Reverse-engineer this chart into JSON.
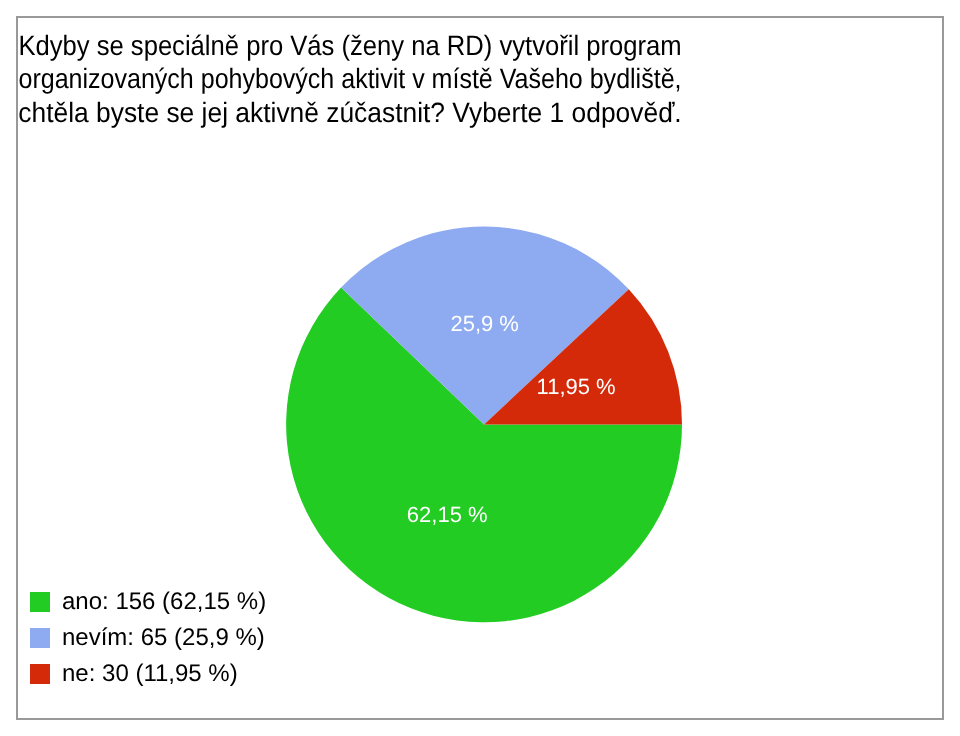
{
  "chart_data": {
    "type": "pie",
    "title": "Kdyby se speciálně pro Vás (ženy na RD) vytvořil program organizovaných pohybových aktivit v místě Vašeho bydliště, chtěla byste se jej aktivně zúčastnit? Vyberte 1 odpověď.",
    "categories": [
      "ano: 156 (62,15 %)",
      "nevím: 65 (25,9 %)",
      "ne: 30 (11,95 %)"
    ],
    "values": [
      62.15,
      25.9,
      11.95
    ],
    "value_labels": [
      "62,15 %",
      "25,9 %",
      "11,95 %"
    ],
    "colors": [
      "#22cc22",
      "#8eaaf0",
      "#d42a0a"
    ],
    "legend": "bottom left"
  }
}
